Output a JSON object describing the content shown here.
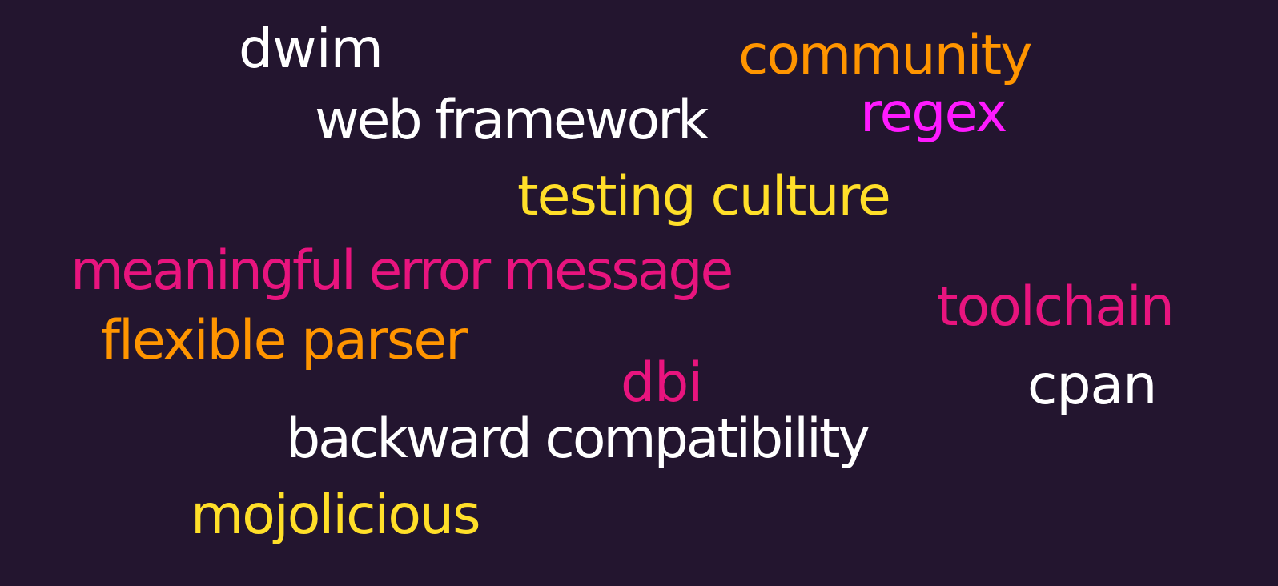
{
  "background_color": "#23152f",
  "colors": {
    "white": "#ffffff",
    "orange": "#ff9500",
    "magenta": "#ff1aff",
    "yellow": "#ffdf29",
    "pink": "#e8147e"
  },
  "words": [
    {
      "text": "dwim",
      "color": "white"
    },
    {
      "text": "community",
      "color": "orange"
    },
    {
      "text": "web framework",
      "color": "white"
    },
    {
      "text": "regex",
      "color": "magenta"
    },
    {
      "text": "testing culture",
      "color": "yellow"
    },
    {
      "text": "meaningful error message",
      "color": "pink"
    },
    {
      "text": "toolchain",
      "color": "pink"
    },
    {
      "text": "flexible parser",
      "color": "orange"
    },
    {
      "text": "dbi",
      "color": "pink"
    },
    {
      "text": "cpan",
      "color": "white"
    },
    {
      "text": "backward compatibility",
      "color": "white"
    },
    {
      "text": "mojolicious",
      "color": "yellow"
    }
  ]
}
